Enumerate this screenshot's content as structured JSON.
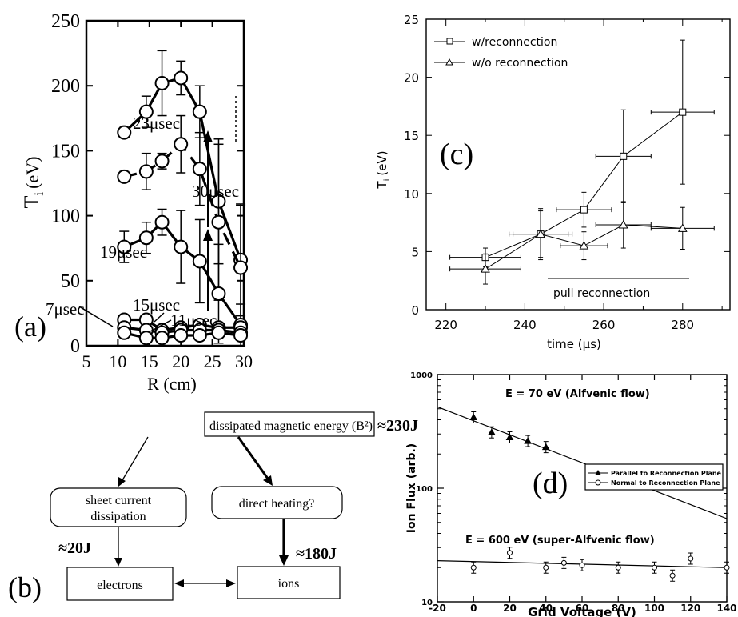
{
  "panel_a": {
    "tag": "(a)",
    "chart_data": {
      "type": "line",
      "xlabel": "R (cm)",
      "ylabel_main": "T",
      "ylabel_sub": "i",
      "ylabel_unit": "(eV)",
      "xlim": [
        5,
        30
      ],
      "ylim": [
        0,
        250
      ],
      "xticks": [
        5,
        10,
        15,
        20,
        25,
        30
      ],
      "yticks": [
        0,
        50,
        100,
        150,
        200,
        250
      ],
      "series": [
        {
          "name": "23μsec",
          "dash": false,
          "x": [
            11,
            14.5,
            17,
            20,
            23,
            26,
            29.5
          ],
          "y": [
            164,
            180,
            202,
            206,
            180,
            111,
            66
          ],
          "err": [
            4,
            12,
            25,
            13,
            20,
            48,
            43
          ]
        },
        {
          "name": "30μsec",
          "dash": true,
          "x": [
            11,
            14.5,
            17,
            20,
            23,
            26,
            29.5
          ],
          "y": [
            130,
            134,
            142,
            155,
            136,
            95,
            60
          ],
          "err": [
            4,
            14,
            6,
            22,
            28,
            60,
            48
          ]
        },
        {
          "name": "19μsec",
          "dash": false,
          "x": [
            11,
            14.5,
            17,
            20,
            23,
            26,
            29.5
          ],
          "y": [
            76,
            83,
            95,
            76,
            65,
            40,
            16
          ],
          "err": [
            12,
            12,
            10,
            28,
            32,
            38,
            16
          ]
        },
        {
          "name": "15μsec",
          "dash": false,
          "x": [
            11,
            14.5,
            17,
            20,
            23,
            26,
            29.5
          ],
          "y": [
            20,
            20,
            12,
            14,
            16,
            14,
            14
          ],
          "err": [
            3,
            3,
            3,
            3,
            3,
            3,
            3
          ]
        },
        {
          "name": "11μsec",
          "dash": false,
          "x": [
            11,
            14.5,
            17,
            20,
            23,
            26,
            29.5
          ],
          "y": [
            14,
            12,
            10,
            12,
            12,
            12,
            10
          ],
          "err": [
            0,
            0,
            0,
            0,
            0,
            0,
            0
          ]
        },
        {
          "name": "7μsec",
          "dash": false,
          "x": [
            11,
            14.5,
            17,
            20,
            23,
            26,
            29.5
          ],
          "y": [
            10,
            6,
            6,
            8,
            8,
            10,
            8
          ],
          "err": [
            0,
            0,
            0,
            0,
            0,
            0,
            0
          ]
        }
      ]
    }
  },
  "panel_b": {
    "tag": "(b)",
    "top_box": "dissipated magnetic energy (B²)",
    "top_value": "≈230J",
    "left_box_line1": "sheet current",
    "left_box_line2": "dissipation",
    "right_box": "direct heating?",
    "left_value": "≈20J",
    "right_value": "≈180J",
    "bottom_left_box": "electrons",
    "bottom_right_box": "ions"
  },
  "panel_c": {
    "tag": "(c)",
    "annotation": "pull reconnection",
    "chart_data": {
      "type": "line",
      "xlabel": "time (μs)",
      "ylabel": "T",
      "ylabel_sub": "i",
      "ylabel_unit": "(eV)",
      "xlim": [
        215,
        292
      ],
      "ylim": [
        0,
        25
      ],
      "xticks": [
        220,
        240,
        260,
        280
      ],
      "yticks": [
        0,
        5,
        10,
        15,
        20,
        25
      ],
      "legend": "top-left",
      "series": [
        {
          "name": "w/reconnection",
          "marker": "square",
          "x": [
            230,
            244,
            255,
            265,
            280
          ],
          "y": [
            4.5,
            6.5,
            8.6,
            13.2,
            17
          ],
          "yerr": [
            0.8,
            2,
            1.5,
            4,
            6.2
          ],
          "xerr": [
            9,
            8,
            7,
            7,
            8
          ]
        },
        {
          "name": "w/o reconnection",
          "marker": "triangle",
          "x": [
            230,
            244,
            255,
            265,
            280
          ],
          "y": [
            3.5,
            6.5,
            5.5,
            7.3,
            7
          ],
          "yerr": [
            1.3,
            2.2,
            1.2,
            2,
            1.8
          ],
          "xerr": [
            9,
            7,
            6,
            7,
            8
          ]
        }
      ]
    }
  },
  "panel_d": {
    "tag": "(d)",
    "label_top": "E = 70 eV (Alfvenic flow)",
    "label_bottom": "E = 600 eV (super-Alfvenic flow)",
    "chart_data": {
      "type": "scatter",
      "yscale": "log",
      "xlabel": "Grid Voltage (V)",
      "ylabel": "Ion Flux (arb.)",
      "xlim": [
        -20,
        140
      ],
      "ylim": [
        10,
        1000
      ],
      "xticks": [
        -20,
        0,
        20,
        40,
        60,
        80,
        100,
        120,
        140
      ],
      "yticks": [
        10,
        100,
        1000
      ],
      "legend": "right",
      "series": [
        {
          "name": "Parallel to Reconnection Plane",
          "marker": "triangle",
          "x": [
            0,
            10,
            20,
            30,
            40
          ],
          "y": [
            420,
            310,
            280,
            260,
            230
          ]
        },
        {
          "name": "Normal to Reconnection Plane",
          "marker": "circle",
          "x": [
            0,
            20,
            40,
            50,
            60,
            80,
            100,
            110,
            120,
            140
          ],
          "y": [
            20,
            27,
            20,
            22,
            21,
            20,
            20,
            17,
            24,
            20
          ]
        }
      ],
      "fit_lines": [
        {
          "x": [
            -20,
            140
          ],
          "y": [
            520,
            54
          ]
        },
        {
          "x": [
            -20,
            140
          ],
          "y": [
            23,
            20
          ]
        }
      ]
    }
  }
}
